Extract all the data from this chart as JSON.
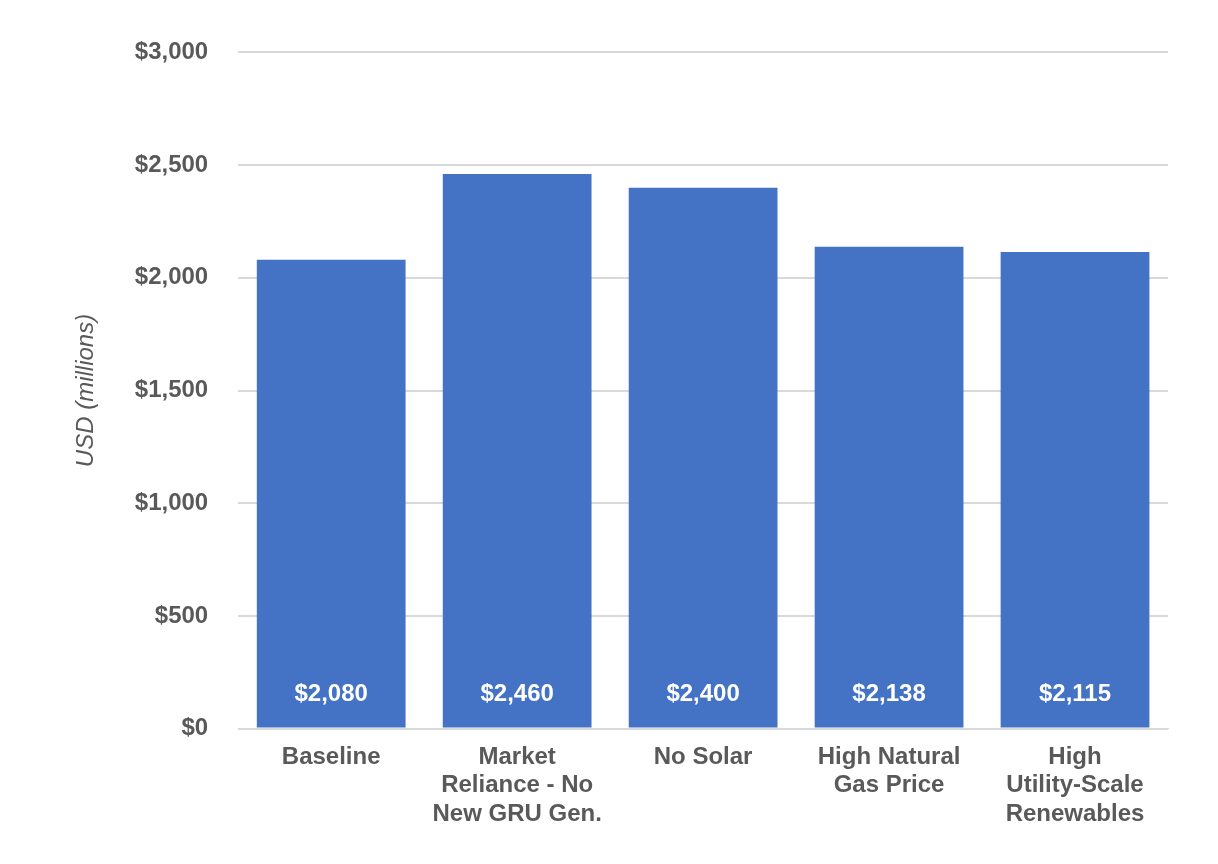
{
  "chart_data": {
    "type": "bar",
    "ylabel": "USD (millions)",
    "categories": [
      "Baseline",
      "Market Reliance - No New GRU Gen.",
      "No Solar",
      "High Natural Gas Price",
      "High Utility-Scale Renewables"
    ],
    "values": [
      2080,
      2460,
      2400,
      2138,
      2115
    ],
    "value_labels": [
      "$2,080",
      "$2,460",
      "$2,400",
      "$2,138",
      "$2,115"
    ],
    "color": "#4472c4",
    "ylim": [
      0,
      3000
    ],
    "yticks": [
      {
        "value": 0,
        "label": "$0"
      },
      {
        "value": 500,
        "label": "$500"
      },
      {
        "value": 1000,
        "label": "$1,000"
      },
      {
        "value": 1500,
        "label": "$1,500"
      },
      {
        "value": 2000,
        "label": "$2,000"
      },
      {
        "value": 2500,
        "label": "$2,500"
      },
      {
        "value": 3000,
        "label": "$3,000"
      }
    ],
    "grid": "y",
    "legend": false
  }
}
